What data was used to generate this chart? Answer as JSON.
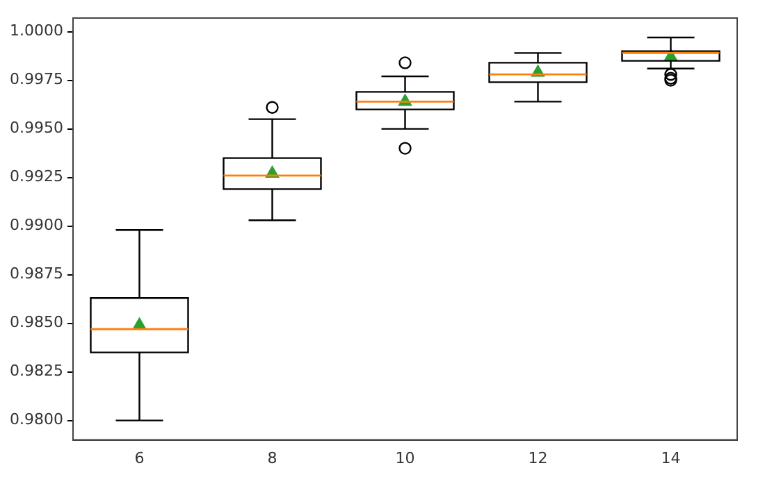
{
  "chart_data": {
    "type": "box",
    "categories": [
      "6",
      "8",
      "10",
      "12",
      "14"
    ],
    "boxes": [
      {
        "low": 0.98,
        "q1": 0.9835,
        "median": 0.9847,
        "q3": 0.9863,
        "high": 0.9898,
        "mean": 0.9849
      },
      {
        "low": 0.9903,
        "q1": 0.9919,
        "median": 0.9926,
        "q3": 0.9935,
        "high": 0.9955,
        "mean": 0.9927,
        "outliers": [
          0.9961
        ]
      },
      {
        "low": 0.995,
        "q1": 0.996,
        "median": 0.9964,
        "q3": 0.9969,
        "high": 0.9977,
        "mean": 0.9964,
        "outliers": [
          0.9984,
          0.994
        ]
      },
      {
        "low": 0.9964,
        "q1": 0.9974,
        "median": 0.9978,
        "q3": 0.9984,
        "high": 0.9989,
        "mean": 0.9979
      },
      {
        "low": 0.9981,
        "q1": 0.9985,
        "median": 0.9989,
        "q3": 0.999,
        "high": 0.9997,
        "mean": 0.9987,
        "outliers": [
          0.9978,
          0.9976,
          0.9975
        ]
      }
    ],
    "ylim": [
      0.979,
      1.0007
    ],
    "yticks": [
      {
        "value": 0.98,
        "label": "0.9800"
      },
      {
        "value": 0.9825,
        "label": "0.9825"
      },
      {
        "value": 0.985,
        "label": "0.9850"
      },
      {
        "value": 0.9875,
        "label": "0.9875"
      },
      {
        "value": 0.99,
        "label": "0.9900"
      },
      {
        "value": 0.9925,
        "label": "0.9925"
      },
      {
        "value": 0.995,
        "label": "0.9950"
      },
      {
        "value": 0.9975,
        "label": "0.9975"
      },
      {
        "value": 1.0,
        "label": "1.0000"
      }
    ],
    "grid": false,
    "legend": false,
    "marker": "triangle"
  }
}
